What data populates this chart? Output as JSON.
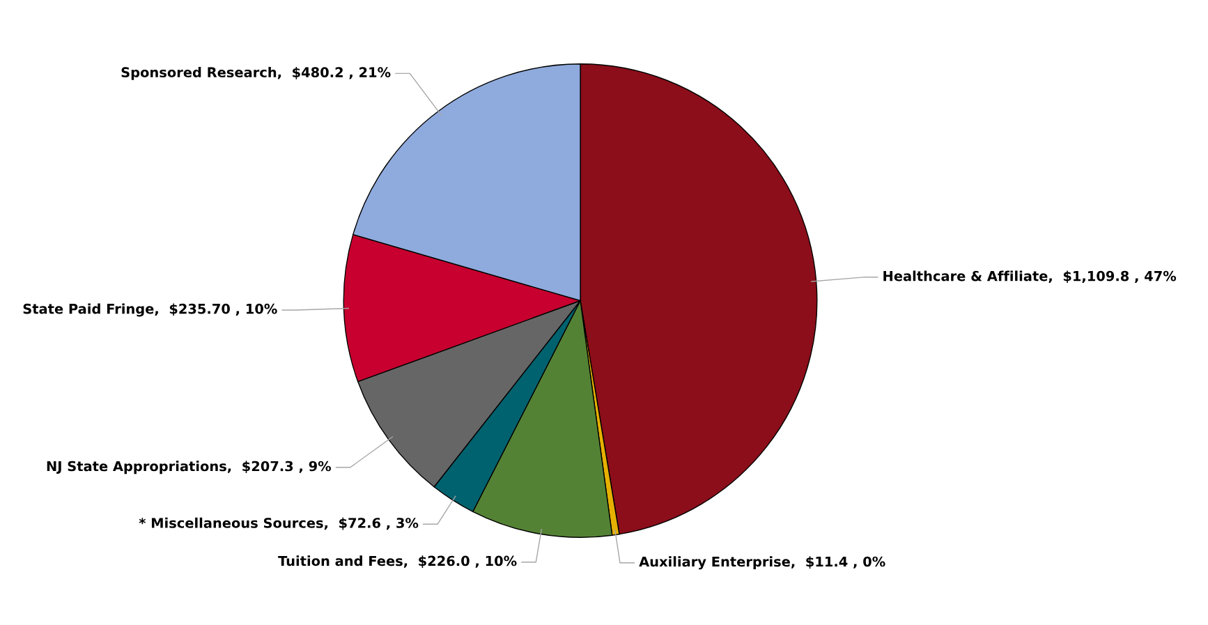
{
  "chart_data": {
    "type": "pie",
    "categories": [
      "Healthcare & Affiliate",
      "Auxiliary Enterprise",
      "Tuition and Fees",
      "* Miscellaneous Sources",
      "NJ State Appropriations",
      "State Paid Fringe",
      "Sponsored Research"
    ],
    "values": [
      1109.8,
      11.4,
      226.0,
      72.6,
      207.3,
      235.7,
      480.2
    ],
    "value_labels": [
      "$1,109.8 , 47%",
      "$11.4 , 0%",
      "$226.0 , 10%",
      "$72.6 , 3%",
      "$207.3 , 9%",
      "$235.70 , 10%",
      "$480.2 , 21%"
    ],
    "colors": [
      "#8b0e1a",
      "#e6b000",
      "#548235",
      "#00626e",
      "#666666",
      "#c8002f",
      "#8faadc"
    ],
    "legend": false
  }
}
